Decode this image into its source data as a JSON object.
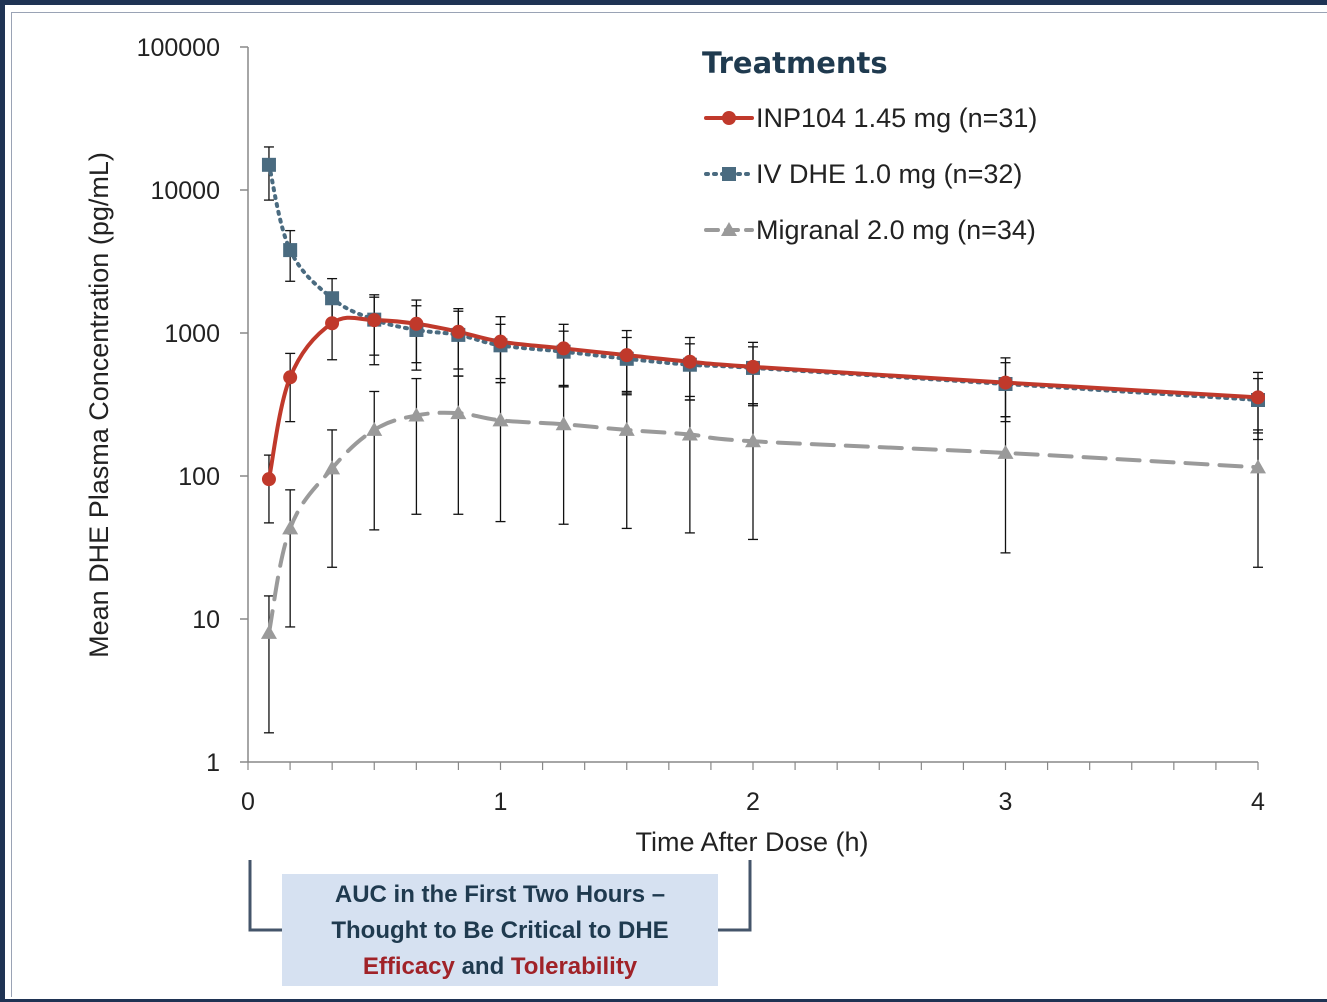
{
  "chart_data": {
    "type": "line",
    "xlabel": "Time After Dose (h)",
    "ylabel": "Mean DHE Plasma Concentration (pg/mL)",
    "y_scale": "log",
    "xlim": [
      0,
      4
    ],
    "ylim": [
      1,
      100000
    ],
    "x_ticks": [
      "0",
      "1",
      "2",
      "3",
      "4"
    ],
    "y_ticks": [
      "1",
      "10",
      "100",
      "1000",
      "10000",
      "100000"
    ],
    "grid": false,
    "legend_title": "Treatments",
    "legend_position": "top-right",
    "series": [
      {
        "name": "INP104 1.45 mg (n=31)",
        "color": "#c0392b",
        "line_style": "solid",
        "marker": "circle",
        "x": [
          0.083,
          0.167,
          0.333,
          0.5,
          0.667,
          0.833,
          1.0,
          1.25,
          1.5,
          1.75,
          2.0,
          3.0,
          4.0
        ],
        "values": [
          95,
          490,
          1170,
          1230,
          1160,
          1020,
          870,
          780,
          700,
          630,
          580,
          450,
          355
        ],
        "error_low": [
          47,
          240,
          650,
          700,
          620,
          560,
          480,
          420,
          380,
          340,
          310,
          240,
          180
        ],
        "error_high": [
          140,
          720,
          1700,
          1780,
          1700,
          1480,
          1300,
          1150,
          1040,
          930,
          860,
          670,
          530
        ]
      },
      {
        "name": "IV DHE 1.0 mg (n=32)",
        "color": "#4a6b80",
        "line_style": "dotted",
        "marker": "square",
        "x": [
          0.083,
          0.167,
          0.333,
          0.5,
          0.667,
          0.833,
          1.0,
          1.25,
          1.5,
          1.75,
          2.0,
          3.0,
          4.0
        ],
        "values": [
          15000,
          3800,
          1750,
          1240,
          1050,
          970,
          820,
          740,
          660,
          600,
          570,
          440,
          340
        ],
        "error_low": [
          8500,
          2300,
          1200,
          600,
          550,
          500,
          450,
          420,
          370,
          340,
          320,
          260,
          200
        ],
        "error_high": [
          20000,
          5200,
          2400,
          1850,
          1550,
          1420,
          1150,
          1030,
          930,
          840,
          800,
          620,
          480
        ]
      },
      {
        "name": "Migranal 2.0 mg (n=34)",
        "color": "#9a9a9a",
        "line_style": "dashed",
        "marker": "triangle",
        "x": [
          0.083,
          0.167,
          0.333,
          0.5,
          0.667,
          0.833,
          1.0,
          1.25,
          1.5,
          1.75,
          2.0,
          3.0,
          4.0
        ],
        "values": [
          8,
          43,
          113,
          210,
          265,
          275,
          245,
          230,
          210,
          195,
          175,
          145,
          115
        ],
        "error_low": [
          1.6,
          8.8,
          23,
          42,
          54,
          54,
          48,
          46,
          43,
          40,
          36,
          29,
          23
        ],
        "error_high": [
          14.5,
          80,
          210,
          390,
          480,
          500,
          450,
          430,
          390,
          360,
          320,
          260,
          210
        ]
      }
    ]
  },
  "annotation": {
    "line1": "AUC in the First Two Hours –",
    "line2": "Thought to Be Critical to DHE",
    "word_efficacy": "Efficacy",
    "word_and": "and",
    "word_tolerability": "Tolerability",
    "accent_color": "#a02228",
    "box_color": "#d6e1f1"
  }
}
